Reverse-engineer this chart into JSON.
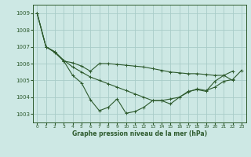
{
  "title": "Graphe pression niveau de la mer (hPa)",
  "background_color": "#cde8e4",
  "grid_color": "#a8ccc8",
  "line_color": "#2d5a2d",
  "marker_color": "#2d5a2d",
  "xlim": [
    -0.5,
    23.5
  ],
  "ylim": [
    1002.5,
    1009.5
  ],
  "yticks": [
    1003,
    1004,
    1005,
    1006,
    1007,
    1008,
    1009
  ],
  "xticks": [
    0,
    1,
    2,
    3,
    4,
    5,
    6,
    7,
    8,
    9,
    10,
    11,
    12,
    13,
    14,
    15,
    16,
    17,
    18,
    19,
    20,
    21,
    22,
    23
  ],
  "series": [
    [
      1009.0,
      1007.0,
      1006.7,
      1006.2,
      1005.8,
      1005.5,
      1005.2,
      1005.0,
      1004.8,
      1004.6,
      1004.4,
      1004.2,
      1004.0,
      1003.8,
      1003.8,
      1003.9,
      1004.0,
      1004.3,
      1004.5,
      1004.4,
      1004.6,
      1004.95,
      1005.05,
      1005.6
    ],
    [
      1009.0,
      1007.0,
      1006.7,
      1006.15,
      1005.3,
      1004.85,
      1003.85,
      1003.2,
      1003.4,
      1003.9,
      1003.05,
      1003.15,
      1003.4,
      1003.8,
      1003.8,
      1003.6,
      1004.0,
      1004.35,
      1004.45,
      1004.35,
      1004.95,
      1005.3,
      1005.0
    ],
    [
      1009.0,
      1007.0,
      1006.65,
      1006.15,
      1006.05,
      1005.85,
      1005.55,
      1006.0,
      1006.0,
      1005.95,
      1005.9,
      1005.85,
      1005.8,
      1005.7,
      1005.6,
      1005.5,
      1005.45,
      1005.4,
      1005.4,
      1005.35,
      1005.3,
      1005.3,
      1005.55
    ]
  ],
  "series_x": [
    [
      0,
      1,
      2,
      3,
      4,
      5,
      6,
      7,
      8,
      9,
      10,
      11,
      12,
      13,
      14,
      15,
      16,
      17,
      18,
      19,
      20,
      21,
      22,
      23
    ],
    [
      0,
      1,
      2,
      3,
      4,
      5,
      6,
      7,
      8,
      9,
      10,
      11,
      12,
      13,
      14,
      15,
      16,
      17,
      18,
      19,
      20,
      21,
      22
    ],
    [
      0,
      1,
      2,
      3,
      4,
      5,
      6,
      7,
      8,
      9,
      10,
      11,
      12,
      13,
      14,
      15,
      16,
      17,
      18,
      19,
      20,
      21,
      22
    ]
  ],
  "xlabel_fontsize": 5.5,
  "ytick_fontsize": 5.0,
  "xtick_fontsize": 4.2
}
